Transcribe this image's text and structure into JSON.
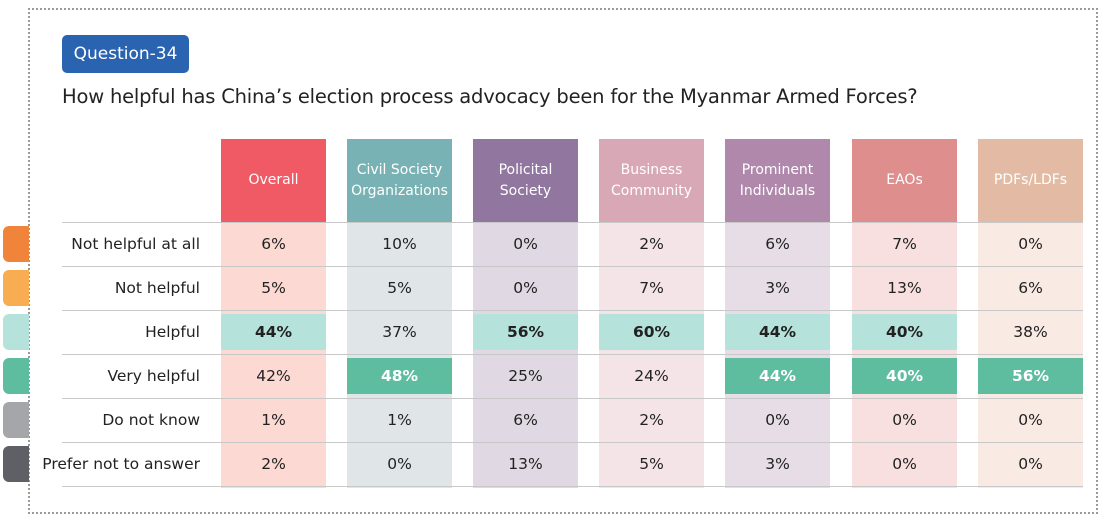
{
  "badge": "Question-34",
  "title": "How helpful has China’s election process advocacy been for the Myanmar Armed Forces?",
  "legend_tab_colors": [
    "#f0843a",
    "#f8ad52",
    "#b5e2da",
    "#5fbd9f",
    "#a5a6a9",
    "#5e6066"
  ],
  "chart_data": {
    "type": "table",
    "title": "How helpful has China’s election process advocacy been for the Myanmar Armed Forces?",
    "columns": [
      {
        "label": "Overall",
        "color": "#ef525d",
        "tint": "#fcd9d3"
      },
      {
        "label": "Civil Society Organizations",
        "color": "#72aeb0",
        "tint": "#e0e6e8"
      },
      {
        "label": "Policital Society",
        "color": "#8c6f9a",
        "tint": "#e0d8e2"
      },
      {
        "label": "Business Community",
        "color": "#d8a4b4",
        "tint": "#f4e4e8"
      },
      {
        "label": "Prominent Individuals",
        "color": "#ac82a8",
        "tint": "#e6dde6"
      },
      {
        "label": "EAOs",
        "color": "#dc8887",
        "tint": "#f7e0df"
      },
      {
        "label": "PDFs/LDFs",
        "color": "#e2b8a0",
        "tint": "#f9ebe4"
      }
    ],
    "rows": [
      {
        "label": "Not helpful at all",
        "values": [
          "6%",
          "10%",
          "0%",
          "2%",
          "6%",
          "7%",
          "0%"
        ],
        "highlight": [
          0,
          0,
          0,
          0,
          0,
          0,
          0
        ]
      },
      {
        "label": "Not helpful",
        "values": [
          "5%",
          "5%",
          "0%",
          "7%",
          "3%",
          "13%",
          "6%"
        ],
        "highlight": [
          0,
          0,
          0,
          0,
          0,
          0,
          0
        ]
      },
      {
        "label": "Helpful",
        "values": [
          "44%",
          "37%",
          "56%",
          "60%",
          "44%",
          "40%",
          "38%"
        ],
        "highlight": [
          1,
          0,
          1,
          1,
          1,
          1,
          0
        ]
      },
      {
        "label": "Very helpful",
        "values": [
          "42%",
          "48%",
          "25%",
          "24%",
          "44%",
          "40%",
          "56%"
        ],
        "highlight": [
          0,
          2,
          0,
          0,
          2,
          2,
          2
        ]
      },
      {
        "label": "Do not know",
        "values": [
          "1%",
          "1%",
          "6%",
          "2%",
          "0%",
          "0%",
          "0%"
        ],
        "highlight": [
          0,
          0,
          0,
          0,
          0,
          0,
          0
        ]
      },
      {
        "label": "Prefer not to answer",
        "values": [
          "2%",
          "0%",
          "13%",
          "5%",
          "3%",
          "0%",
          "0%"
        ],
        "highlight": [
          0,
          0,
          0,
          0,
          0,
          0,
          0
        ]
      }
    ]
  }
}
